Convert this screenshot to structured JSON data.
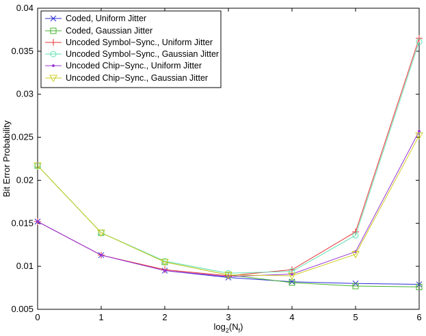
{
  "chart_data": {
    "type": "line",
    "xlabel": "log",
    "xlabel_sub": "2",
    "xlabel_paren_open": "(N",
    "xlabel_sub2": "f",
    "xlabel_paren_close": ")",
    "ylabel": "Bit Error Probability",
    "xlim": [
      0,
      6
    ],
    "ylim": [
      0.005,
      0.04
    ],
    "xticks": [
      0,
      1,
      2,
      3,
      4,
      5,
      6
    ],
    "xtick_labels": [
      "0",
      "1",
      "2",
      "3",
      "4",
      "5",
      "6"
    ],
    "yticks": [
      0.005,
      0.01,
      0.015,
      0.02,
      0.025,
      0.03,
      0.035,
      0.04
    ],
    "ytick_labels": [
      "0.005",
      "0.01",
      "0.015",
      "0.02",
      "0.025",
      "0.03",
      "0.035",
      "0.04"
    ],
    "grid": false,
    "legend_position": "top-left",
    "x": [
      0,
      1,
      2,
      3,
      4,
      5,
      6
    ],
    "series": [
      {
        "name": "Coded, Uniform Jitter",
        "color": "#2a2ad6",
        "marker": "x",
        "values": [
          0.0152,
          0.0113,
          0.0095,
          0.0087,
          0.0082,
          0.008,
          0.0079
        ]
      },
      {
        "name": "Coded, Gaussian Jitter",
        "color": "#43b02a",
        "marker": "square",
        "values": [
          0.0217,
          0.0139,
          0.0105,
          0.009,
          0.0081,
          0.0077,
          0.0076
        ]
      },
      {
        "name": "Uncoded Symbol−Sync., Uniform Jitter",
        "color": "#e53030",
        "marker": "plus",
        "values": [
          0.0152,
          0.0113,
          0.0096,
          0.0089,
          0.0096,
          0.014,
          0.0365
        ]
      },
      {
        "name": "Uncoded Symbol−Sync., Gaussian Jitter",
        "color": "#5fe0b0",
        "marker": "circle",
        "values": [
          0.0217,
          0.0139,
          0.0106,
          0.0092,
          0.0094,
          0.0136,
          0.0361
        ]
      },
      {
        "name": "Uncoded Chip−Sync., Uniform Jitter",
        "color": "#9b33d6",
        "marker": "dot",
        "values": [
          0.0152,
          0.0113,
          0.0095,
          0.0088,
          0.0091,
          0.0117,
          0.0257
        ]
      },
      {
        "name": "Uncoded Chip−Sync., Gaussian Jitter",
        "color": "#cccc22",
        "marker": "triangle-down",
        "values": [
          0.0217,
          0.0139,
          0.0105,
          0.009,
          0.0089,
          0.0114,
          0.0252
        ]
      }
    ]
  }
}
